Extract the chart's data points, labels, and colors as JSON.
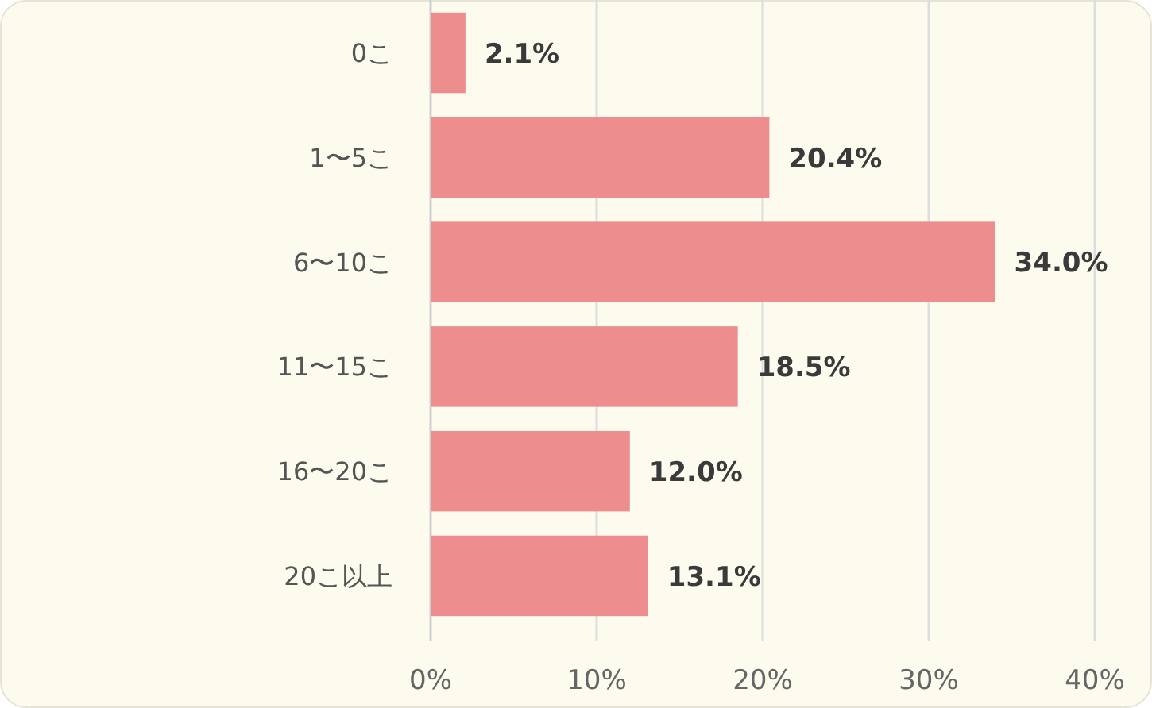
{
  "chart_data": {
    "type": "bar",
    "orientation": "horizontal",
    "categories": [
      "0こ",
      "1〜5こ",
      "6〜10こ",
      "11〜15こ",
      "16〜20こ",
      "20こ以上"
    ],
    "values": [
      2.1,
      20.4,
      34.0,
      18.5,
      12.0,
      13.1
    ],
    "value_labels": [
      "2.1%",
      "20.4%",
      "34.0%",
      "18.5%",
      "12.0%",
      "13.1%"
    ],
    "color": "#ed8d8d",
    "xlim": [
      0,
      40
    ],
    "xticks": [
      {
        "value": 0,
        "label": "0%"
      },
      {
        "value": 10,
        "label": "10%"
      },
      {
        "value": 20,
        "label": "20%"
      },
      {
        "value": 30,
        "label": "30%"
      },
      {
        "value": 40,
        "label": "40%"
      }
    ],
    "grid": "x"
  }
}
